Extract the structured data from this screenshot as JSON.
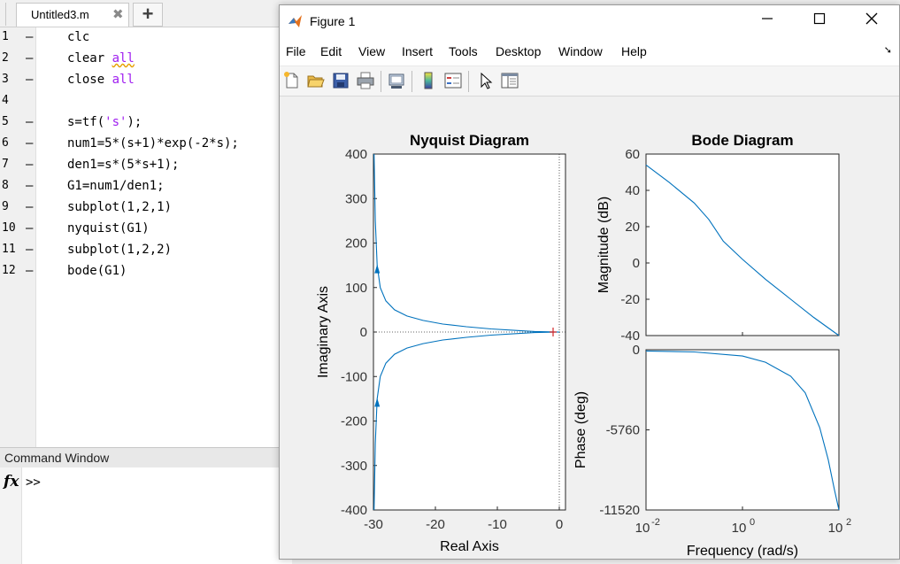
{
  "editor": {
    "tab_label": "Untitled3.m",
    "tab_close": "✖",
    "tab_add": "+",
    "lines": [
      {
        "num": "1",
        "parts": [
          {
            "t": "clc",
            "c": ""
          }
        ]
      },
      {
        "num": "2",
        "parts": [
          {
            "t": "clear ",
            "c": ""
          },
          {
            "t": "all",
            "c": "kw squig"
          }
        ]
      },
      {
        "num": "3",
        "parts": [
          {
            "t": "close ",
            "c": ""
          },
          {
            "t": "all",
            "c": "kw"
          }
        ]
      },
      {
        "num": "4",
        "parts": []
      },
      {
        "num": "5",
        "parts": [
          {
            "t": "s=tf(",
            "c": ""
          },
          {
            "t": "'s'",
            "c": "str"
          },
          {
            "t": ");",
            "c": ""
          }
        ]
      },
      {
        "num": "6",
        "parts": [
          {
            "t": "num1=5*(s+1)*exp(-2*s);",
            "c": ""
          }
        ]
      },
      {
        "num": "7",
        "parts": [
          {
            "t": "den1=s*(5*s+1);",
            "c": ""
          }
        ]
      },
      {
        "num": "8",
        "parts": [
          {
            "t": "G1=num1/den1;",
            "c": ""
          }
        ]
      },
      {
        "num": "9",
        "parts": [
          {
            "t": "subplot(1,2,1)",
            "c": ""
          }
        ]
      },
      {
        "num": "10",
        "parts": [
          {
            "t": "nyquist(G1)",
            "c": ""
          }
        ]
      },
      {
        "num": "11",
        "parts": [
          {
            "t": "subplot(1,2,2)",
            "c": ""
          }
        ]
      },
      {
        "num": "12",
        "parts": [
          {
            "t": "bode(G1)",
            "c": ""
          }
        ]
      }
    ]
  },
  "command_window": {
    "title": "Command Window",
    "fx": "fx",
    "prompt": ">>"
  },
  "figure": {
    "title": "Figure 1",
    "menu": [
      "File",
      "Edit",
      "View",
      "Insert",
      "Tools",
      "Desktop",
      "Window",
      "Help"
    ],
    "toolbar_icons": [
      "new-figure-icon",
      "open-file-icon",
      "save-icon",
      "print-icon",
      "link-plot-icon",
      "colorbar-icon",
      "legend-icon",
      "pointer-icon",
      "property-editor-icon"
    ]
  },
  "colors": {
    "line": "#0072bd",
    "marker": "#d62728"
  },
  "chart_data": [
    {
      "type": "line",
      "title": "Nyquist Diagram",
      "xlabel": "Real Axis",
      "ylabel": "Imaginary Axis",
      "xlim": [
        -30,
        1
      ],
      "ylim": [
        -400,
        400
      ],
      "xticks": [
        "-30",
        "-20",
        "-10",
        "0"
      ],
      "yticks": [
        "400",
        "300",
        "200",
        "100",
        "0",
        "-100",
        "-200",
        "-300",
        "-400"
      ],
      "series": [
        {
          "x": [
            -29.9,
            -29.7,
            -29.4,
            -28.9,
            -28,
            -26.6,
            -24.6,
            -22,
            -18.8,
            -15,
            -11,
            -7,
            -4,
            -1.5,
            0
          ],
          "y": [
            400,
            250,
            150,
            100,
            70,
            50,
            36,
            26,
            18,
            12,
            7,
            3.5,
            1.2,
            0.3,
            0
          ]
        },
        {
          "x": [
            -29.9,
            -29.7,
            -29.4,
            -28.9,
            -28,
            -26.6,
            -24.6,
            -22,
            -18.8,
            -15,
            -11,
            -7,
            -4,
            -1.5,
            0
          ],
          "y": [
            -400,
            -250,
            -150,
            -100,
            -70,
            -50,
            -36,
            -26,
            -18,
            -12,
            -7,
            -3.5,
            -1.2,
            -0.3,
            0
          ]
        }
      ],
      "critical_point": [
        -1,
        0
      ]
    },
    {
      "type": "line",
      "title": "Bode Diagram",
      "xlabel": "Frequency  (rad/s)",
      "log_x": true,
      "xlim": [
        0.01,
        100
      ],
      "xticks": [
        {
          "base": "10",
          "exp": "-2"
        },
        {
          "base": "10",
          "exp": "0"
        },
        {
          "base": "10",
          "exp": "2"
        }
      ],
      "magnitude": {
        "ylabel": "Magnitude (dB)",
        "ylim": [
          -40,
          60
        ],
        "yticks": [
          "60",
          "40",
          "20",
          "0",
          "-20",
          "-40"
        ],
        "x": [
          0.01,
          0.03,
          0.1,
          0.2,
          0.4,
          1,
          3,
          10,
          30,
          100
        ],
        "y": [
          54,
          44.5,
          33,
          24,
          12,
          2,
          -9,
          -20,
          -30,
          -40
        ]
      },
      "phase": {
        "ylabel": "Phase (deg)",
        "ylim": [
          -11520,
          0
        ],
        "yticks": [
          "0",
          "-5760",
          "-11520"
        ],
        "x": [
          0.01,
          0.1,
          1,
          3,
          10,
          20,
          40,
          60,
          80,
          100
        ],
        "y": [
          -90,
          -160,
          -450,
          -900,
          -1900,
          -3100,
          -5600,
          -7900,
          -10000,
          -11520
        ]
      }
    }
  ]
}
